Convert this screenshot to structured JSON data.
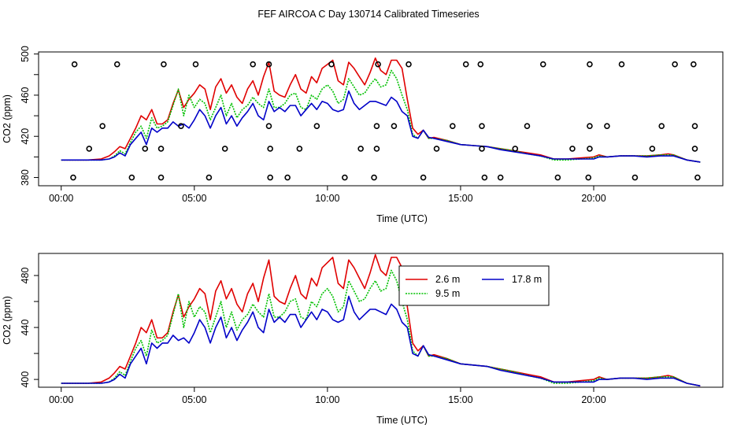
{
  "title": "FEF AIRCOA C  Day 130714  Calibrated Timeseries",
  "colors": {
    "red": "#e00000",
    "green": "#00c000",
    "blue": "#0000c8",
    "axis": "#000000",
    "bg": "#ffffff"
  },
  "chart_data": [
    {
      "type": "line",
      "xlabel": "Time (UTC)",
      "ylabel": "CO2 (ppm)",
      "xlim": [
        -0.85,
        24.85
      ],
      "ylim": [
        372,
        502
      ],
      "x_ticks": [
        0,
        5,
        10,
        15,
        20
      ],
      "x_tick_labels": [
        "00:00",
        "05:00",
        "10:00",
        "15:00",
        "20:00"
      ],
      "y_ticks": [
        380,
        420,
        460,
        500
      ],
      "y_tick_labels": [
        "380",
        "420",
        "460",
        "500"
      ],
      "y_minor_ticks": [
        400,
        440,
        480
      ],
      "markers": {
        "name": "cal",
        "symbol": "circle",
        "x": [
          0.5,
          2.1,
          3.85,
          5.05,
          7.2,
          7.8,
          10.15,
          11.9,
          13.05,
          15.2,
          15.75,
          18.1,
          19.85,
          21.05,
          23.05,
          23.75,
          1.05,
          3.75,
          6.15,
          7.85,
          8.95,
          11.25,
          11.85,
          15.8,
          17.05,
          19.2,
          19.85,
          22.2,
          23.8,
          1.55,
          4.5,
          7.8,
          9.6,
          11.85,
          12.5,
          14.7,
          15.8,
          17.5,
          19.85,
          20.5,
          22.55,
          23.8,
          0.45,
          2.65,
          3.75,
          5.55,
          7.85,
          8.5,
          10.65,
          11.75,
          13.6,
          15.9,
          16.5,
          18.65,
          19.8,
          21.55,
          23.9,
          3.15,
          14.1
        ],
        "y": [
          490,
          490,
          490,
          490,
          490,
          490,
          490,
          490,
          490,
          490,
          490,
          490,
          490,
          490,
          490,
          490,
          408,
          408,
          408,
          408,
          408,
          408,
          408,
          408,
          408,
          408,
          408,
          408,
          408,
          430,
          430,
          430,
          430,
          430,
          430,
          430,
          430,
          430,
          430,
          430,
          430,
          430,
          380,
          380,
          380,
          380,
          380,
          380,
          380,
          380,
          380,
          380,
          380,
          380,
          380,
          380,
          380,
          408,
          408
        ]
      },
      "series": []
    },
    {
      "type": "line",
      "xlabel": "Time (UTC)",
      "ylabel": "CO2 (ppm)",
      "xlim": [
        -0.85,
        24.85
      ],
      "ylim": [
        394,
        497
      ],
      "x_ticks": [
        0,
        5,
        10,
        15,
        20
      ],
      "x_tick_labels": [
        "00:00",
        "05:00",
        "10:00",
        "15:00",
        "20:00"
      ],
      "y_ticks": [
        400,
        440,
        480
      ],
      "y_tick_labels": [
        "400",
        "440",
        "480"
      ],
      "y_minor_ticks": [
        420,
        460
      ],
      "legend": {
        "placement": "top-right-inner",
        "entries": [
          "2.6 m",
          "9.5 m",
          "17.8 m"
        ]
      },
      "series": []
    }
  ],
  "series_data": [
    {
      "name": "2.6 m",
      "color": "#e00000",
      "dash": "",
      "x": [
        0,
        0.5,
        1,
        1.5,
        1.8,
        2,
        2.2,
        2.4,
        2.6,
        2.8,
        3,
        3.2,
        3.4,
        3.6,
        3.8,
        4,
        4.2,
        4.4,
        4.6,
        4.8,
        5,
        5.2,
        5.4,
        5.6,
        5.8,
        6,
        6.2,
        6.4,
        6.6,
        6.8,
        7,
        7.2,
        7.4,
        7.6,
        7.8,
        8,
        8.2,
        8.4,
        8.6,
        8.8,
        9,
        9.2,
        9.4,
        9.6,
        9.8,
        10,
        10.2,
        10.4,
        10.6,
        10.8,
        11,
        11.2,
        11.4,
        11.6,
        11.8,
        12,
        12.2,
        12.4,
        12.6,
        12.8,
        13,
        13.2,
        13.4,
        13.6,
        13.8,
        14,
        14.5,
        15,
        15.5,
        16,
        16.5,
        17,
        17.5,
        18,
        18.5,
        19,
        19.5,
        20,
        20.2,
        20.5,
        21,
        21.5,
        22,
        22.5,
        22.8,
        23,
        23.5,
        24
      ],
      "y": [
        397,
        397,
        397,
        398,
        401,
        405,
        410,
        408,
        418,
        428,
        440,
        436,
        446,
        432,
        432,
        436,
        452,
        465,
        448,
        456,
        462,
        470,
        466,
        446,
        468,
        476,
        462,
        470,
        458,
        452,
        466,
        474,
        460,
        478,
        492,
        464,
        460,
        458,
        470,
        480,
        466,
        462,
        478,
        472,
        486,
        490,
        494,
        474,
        470,
        492,
        486,
        478,
        470,
        482,
        496,
        484,
        480,
        494,
        494,
        486,
        456,
        428,
        422,
        426,
        418,
        419,
        416,
        412,
        411,
        410,
        408,
        406,
        404,
        402,
        398,
        398,
        399,
        400,
        402,
        400,
        401,
        401,
        401,
        402,
        403,
        402,
        397,
        395
      ]
    },
    {
      "name": "9.5 m",
      "color": "#00c000",
      "dash": "2,1.4",
      "x": [
        0,
        0.5,
        1,
        1.5,
        1.8,
        2,
        2.2,
        2.4,
        2.6,
        2.8,
        3,
        3.2,
        3.4,
        3.6,
        3.8,
        4,
        4.2,
        4.4,
        4.6,
        4.8,
        5,
        5.2,
        5.4,
        5.6,
        5.8,
        6,
        6.2,
        6.4,
        6.6,
        6.8,
        7,
        7.2,
        7.4,
        7.6,
        7.8,
        8,
        8.2,
        8.4,
        8.6,
        8.8,
        9,
        9.2,
        9.4,
        9.6,
        9.8,
        10,
        10.2,
        10.4,
        10.6,
        10.8,
        11,
        11.2,
        11.4,
        11.6,
        11.8,
        12,
        12.2,
        12.4,
        12.6,
        12.8,
        13,
        13.2,
        13.4,
        13.6,
        13.8,
        14,
        14.5,
        15,
        15.5,
        16,
        16.5,
        17,
        17.5,
        18,
        18.5,
        19,
        19.5,
        20,
        20.2,
        20.5,
        21,
        21.5,
        22,
        22.5,
        22.8,
        23,
        23.5,
        24
      ],
      "y": [
        397,
        397,
        397,
        397,
        398,
        401,
        406,
        403,
        414,
        424,
        430,
        418,
        438,
        428,
        430,
        434,
        450,
        466,
        440,
        460,
        448,
        456,
        452,
        436,
        448,
        460,
        440,
        452,
        438,
        446,
        450,
        458,
        452,
        448,
        466,
        448,
        448,
        452,
        460,
        462,
        448,
        446,
        460,
        456,
        466,
        470,
        464,
        452,
        456,
        476,
        468,
        460,
        462,
        470,
        476,
        468,
        470,
        484,
        476,
        460,
        446,
        422,
        418,
        426,
        418,
        418,
        416,
        412,
        411,
        410,
        408,
        406,
        403,
        401,
        397,
        397,
        398,
        399,
        401,
        400,
        401,
        401,
        401,
        402,
        402,
        402,
        397,
        395
      ]
    },
    {
      "name": "17.8 m",
      "color": "#0000c8",
      "dash": "",
      "x": [
        0,
        0.5,
        1,
        1.5,
        1.8,
        2,
        2.2,
        2.4,
        2.6,
        2.8,
        3,
        3.2,
        3.4,
        3.6,
        3.8,
        4,
        4.2,
        4.4,
        4.6,
        4.8,
        5,
        5.2,
        5.4,
        5.6,
        5.8,
        6,
        6.2,
        6.4,
        6.6,
        6.8,
        7,
        7.2,
        7.4,
        7.6,
        7.8,
        8,
        8.2,
        8.4,
        8.6,
        8.8,
        9,
        9.2,
        9.4,
        9.6,
        9.8,
        10,
        10.2,
        10.4,
        10.6,
        10.8,
        11,
        11.2,
        11.4,
        11.6,
        11.8,
        12,
        12.2,
        12.4,
        12.6,
        12.8,
        13,
        13.2,
        13.4,
        13.6,
        13.8,
        14,
        14.5,
        15,
        15.5,
        16,
        16.5,
        17,
        17.5,
        18,
        18.5,
        19,
        19.5,
        20,
        20.2,
        20.5,
        21,
        21.5,
        22,
        22.5,
        22.8,
        23,
        23.5,
        24
      ],
      "y": [
        397,
        397,
        397,
        397,
        398,
        400,
        404,
        401,
        412,
        418,
        424,
        412,
        428,
        424,
        428,
        428,
        434,
        430,
        432,
        428,
        436,
        446,
        440,
        428,
        440,
        448,
        432,
        440,
        430,
        438,
        444,
        452,
        440,
        436,
        454,
        444,
        448,
        444,
        450,
        450,
        440,
        446,
        452,
        446,
        454,
        452,
        446,
        444,
        446,
        464,
        452,
        446,
        450,
        454,
        454,
        452,
        450,
        458,
        454,
        444,
        440,
        420,
        418,
        426,
        419,
        418,
        415,
        412,
        411,
        410,
        407,
        405,
        403,
        401,
        398,
        398,
        398,
        398,
        400,
        400,
        401,
        401,
        400,
        401,
        401,
        401,
        397,
        395
      ]
    }
  ]
}
